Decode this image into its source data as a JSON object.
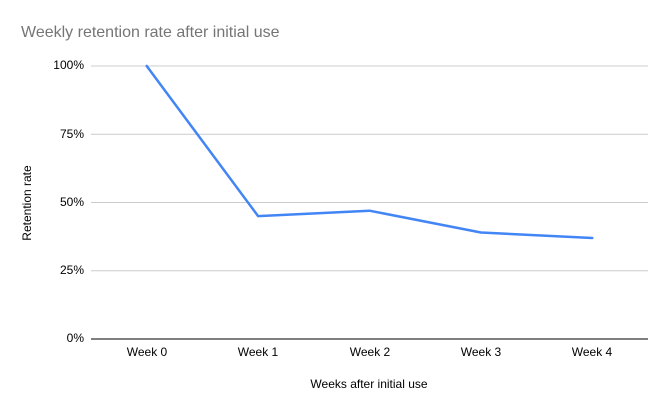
{
  "chart_data": {
    "type": "line",
    "title": "Weekly retention rate after initial use",
    "xlabel": "Weeks after initial use",
    "ylabel": "Retention rate",
    "categories": [
      "Week 0",
      "Week 1",
      "Week 2",
      "Week 3",
      "Week 4"
    ],
    "series": [
      {
        "name": "Retention rate",
        "values": [
          100,
          45,
          47,
          39,
          37
        ]
      }
    ],
    "ylim": [
      0,
      100
    ],
    "y_tick_values": [
      0,
      25,
      50,
      75,
      100
    ],
    "y_tick_labels": [
      "0%",
      "25%",
      "50%",
      "75%",
      "100%"
    ],
    "grid": "horizontal",
    "legend": "none",
    "markers": "none",
    "colors": {
      "line": "#4285f4",
      "grid": "#cccccc",
      "baseline": "#333333",
      "title": "#757575",
      "labels": "#000000",
      "background": "#ffffff"
    }
  }
}
